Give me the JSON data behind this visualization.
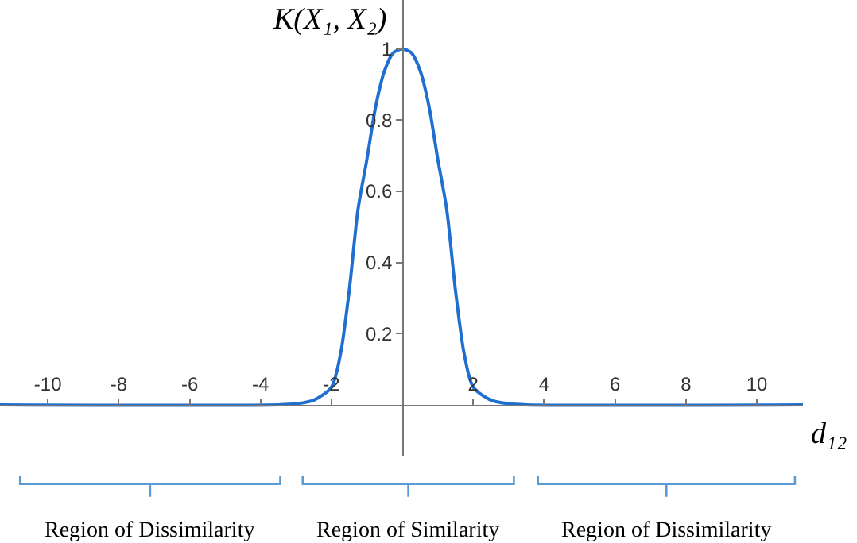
{
  "chart_data": {
    "type": "line",
    "xlabel": "d₁₂",
    "ylabel": "K(X₁, X₂)",
    "series": [
      {
        "color": "#1f6fd0",
        "x": [
          -11.35,
          -3.5,
          -3,
          -2.5,
          -2,
          -1.75,
          -1.5,
          -1.25,
          -1,
          -0.75,
          -0.5,
          -0.25,
          0,
          0.25,
          0.5,
          0.75,
          1,
          1.25,
          1.5,
          1.75,
          2,
          2.5,
          3,
          3.5,
          11.3
        ],
        "values": [
          0,
          0,
          0.003,
          0.013,
          0.05,
          0.14,
          0.32,
          0.55,
          0.69,
          0.84,
          0.94,
          0.99,
          1,
          0.99,
          0.94,
          0.84,
          0.69,
          0.55,
          0.32,
          0.14,
          0.05,
          0.013,
          0.003,
          0,
          0
        ]
      }
    ],
    "xlim": [
      -11.35,
      11.3
    ],
    "ylim": [
      -0.143,
      1.138
    ],
    "xticks": [
      -10,
      -8,
      -6,
      -4,
      -2,
      2,
      4,
      6,
      8,
      10
    ],
    "yticks": [
      0.2,
      0.4,
      0.6,
      0.8,
      1
    ],
    "annotations": [
      "Region of Dissimilarity",
      "Region of Similarity",
      "Region of Dissimilarity"
    ],
    "grid": false,
    "marker": "none",
    "line_style": "solid"
  }
}
